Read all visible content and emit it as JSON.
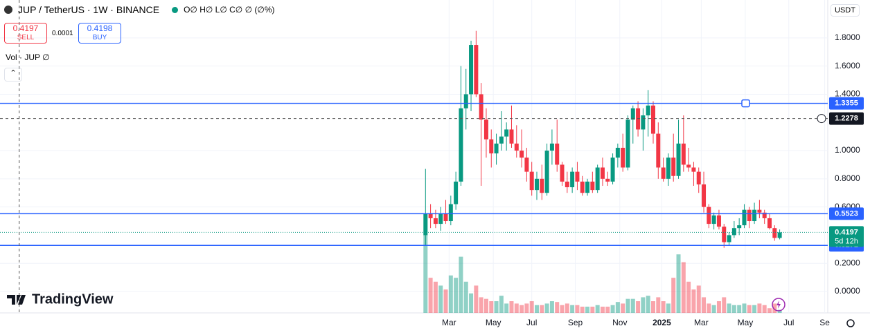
{
  "header": {
    "title": "JUP / TetherUS · 1W · BINANCE",
    "ohlc": "O∅ H∅ L∅ C∅ ∅ (∅%)",
    "sell_price": "0.4197",
    "sell_label": "SELL",
    "spread": "0.0001",
    "buy_price": "0.4198",
    "buy_label": "BUY",
    "volume_legend": "Vol · JUP  ∅",
    "currency": "USDT",
    "brand": "TradingView"
  },
  "chart_data": {
    "type": "candlestick",
    "open": [
      0.4,
      0.55,
      0.52,
      0.48,
      0.55,
      0.5,
      0.62,
      0.78,
      1.3,
      1.4,
      1.75,
      1.4,
      1.22,
      1.08,
      0.98,
      1.05,
      1.1,
      1.15,
      1.05,
      1.0,
      0.95,
      0.85,
      0.72,
      0.8,
      0.7,
      1.0,
      1.05,
      0.9,
      0.78,
      0.74,
      0.85,
      0.78,
      0.7,
      0.78,
      0.72,
      0.88,
      0.8,
      0.78,
      0.95,
      1.02,
      0.88,
      1.22,
      1.3,
      1.15,
      1.25,
      1.32,
      1.12,
      0.88,
      0.8,
      0.95,
      0.82,
      1.05,
      0.9,
      0.88,
      0.85,
      0.76,
      0.6,
      0.48,
      0.54,
      0.46,
      0.35,
      0.4,
      0.45,
      0.47,
      0.58,
      0.5,
      0.58,
      0.56,
      0.52,
      0.45,
      0.38
    ],
    "high": [
      0.87,
      0.62,
      0.58,
      0.6,
      0.65,
      0.68,
      0.85,
      1.6,
      1.58,
      1.78,
      1.85,
      1.48,
      1.3,
      1.15,
      1.12,
      1.28,
      1.2,
      1.32,
      1.18,
      1.15,
      1.02,
      0.92,
      0.85,
      0.9,
      1.05,
      1.15,
      1.22,
      0.92,
      0.85,
      0.88,
      0.92,
      0.82,
      0.8,
      0.85,
      0.9,
      0.95,
      0.85,
      0.98,
      1.05,
      1.12,
      1.25,
      1.32,
      1.35,
      1.3,
      1.43,
      1.35,
      1.2,
      0.95,
      0.98,
      1.12,
      1.22,
      1.25,
      1.02,
      0.92,
      0.88,
      0.85,
      0.62,
      0.56,
      0.58,
      0.48,
      0.42,
      0.5,
      0.52,
      0.62,
      0.6,
      0.63,
      0.65,
      0.58,
      0.55,
      0.47,
      0.44
    ],
    "low": [
      0.33,
      0.45,
      0.45,
      0.43,
      0.48,
      0.47,
      0.58,
      0.75,
      1.15,
      1.28,
      1.38,
      0.75,
      0.95,
      0.88,
      0.9,
      1.0,
      1.0,
      1.02,
      0.95,
      0.88,
      0.78,
      0.68,
      0.65,
      0.65,
      0.68,
      0.9,
      0.85,
      0.75,
      0.7,
      0.7,
      0.72,
      0.68,
      0.68,
      0.7,
      0.7,
      0.75,
      0.75,
      0.76,
      0.88,
      0.85,
      0.86,
      1.05,
      1.1,
      1.0,
      1.1,
      1.05,
      0.8,
      0.78,
      0.75,
      0.78,
      0.8,
      0.85,
      0.85,
      0.75,
      0.7,
      0.56,
      0.45,
      0.44,
      0.44,
      0.31,
      0.33,
      0.38,
      0.4,
      0.45,
      0.45,
      0.48,
      0.52,
      0.48,
      0.44,
      0.36,
      0.37
    ],
    "close": [
      0.55,
      0.52,
      0.48,
      0.55,
      0.5,
      0.62,
      0.78,
      1.3,
      1.4,
      1.75,
      1.4,
      1.22,
      1.08,
      0.98,
      1.05,
      1.1,
      1.15,
      1.05,
      1.0,
      0.95,
      0.85,
      0.72,
      0.8,
      0.7,
      1.0,
      1.05,
      0.9,
      0.78,
      0.74,
      0.85,
      0.78,
      0.7,
      0.78,
      0.72,
      0.88,
      0.8,
      0.78,
      0.95,
      1.02,
      0.88,
      1.22,
      1.3,
      1.15,
      1.25,
      1.32,
      1.12,
      0.88,
      0.8,
      0.95,
      0.82,
      1.05,
      0.9,
      0.88,
      0.85,
      0.76,
      0.6,
      0.48,
      0.54,
      0.46,
      0.35,
      0.4,
      0.45,
      0.47,
      0.58,
      0.5,
      0.58,
      0.56,
      0.52,
      0.45,
      0.38,
      0.4197
    ],
    "volume": [
      100,
      45,
      40,
      35,
      30,
      48,
      45,
      72,
      40,
      25,
      35,
      20,
      18,
      15,
      15,
      22,
      12,
      15,
      12,
      10,
      12,
      15,
      10,
      10,
      12,
      15,
      14,
      10,
      12,
      10,
      10,
      8,
      8,
      8,
      10,
      8,
      8,
      10,
      14,
      12,
      18,
      18,
      15,
      20,
      22,
      15,
      20,
      15,
      12,
      45,
      75,
      65,
      40,
      30,
      35,
      20,
      12,
      10,
      15,
      20,
      12,
      10,
      10,
      12,
      10,
      10,
      12,
      10,
      6,
      12,
      4
    ],
    "up_color": "#089981",
    "down_color": "#f23645",
    "xlim": [
      -84.1,
      79.5
    ],
    "xticks": [
      {
        "value": 4.66,
        "label": "Mar"
      },
      {
        "value": 13.4,
        "label": "May"
      },
      {
        "value": 21,
        "label": "Jul"
      },
      {
        "value": 29.6,
        "label": "Sep"
      },
      {
        "value": 38.4,
        "label": "Nov"
      },
      {
        "value": 46.7,
        "label": "2025"
      },
      {
        "value": 54.5,
        "label": "Mar"
      },
      {
        "value": 63.2,
        "label": "May"
      },
      {
        "value": 71.8,
        "label": "Jul"
      },
      {
        "value": 78.9,
        "label": "Se"
      }
    ],
    "ylim": [
      -0.152,
      2.069
    ],
    "yticks": [
      {
        "value": 0,
        "label": "0.0000"
      },
      {
        "value": 0.2,
        "label": "0.2000"
      },
      {
        "value": 0.6,
        "label": "0.6000"
      },
      {
        "value": 0.8,
        "label": "0.8000"
      },
      {
        "value": 1,
        "label": "1.0000"
      },
      {
        "value": 1.4,
        "label": "1.4000"
      },
      {
        "value": 1.6,
        "label": "1.6000"
      },
      {
        "value": 1.8,
        "label": "1.8000"
      }
    ],
    "grid": true,
    "price_lines": [
      {
        "value": 1.3355,
        "color": "#2962ff"
      },
      {
        "value": 0.5523,
        "color": "#2962ff"
      },
      {
        "value": 0.3271,
        "color": "#2962ff"
      }
    ],
    "last_price": {
      "value": 0.4197,
      "countdown": "5d 12h",
      "color": "#089981"
    },
    "crosshair": {
      "x": -80.3,
      "y": 1.2278
    }
  }
}
